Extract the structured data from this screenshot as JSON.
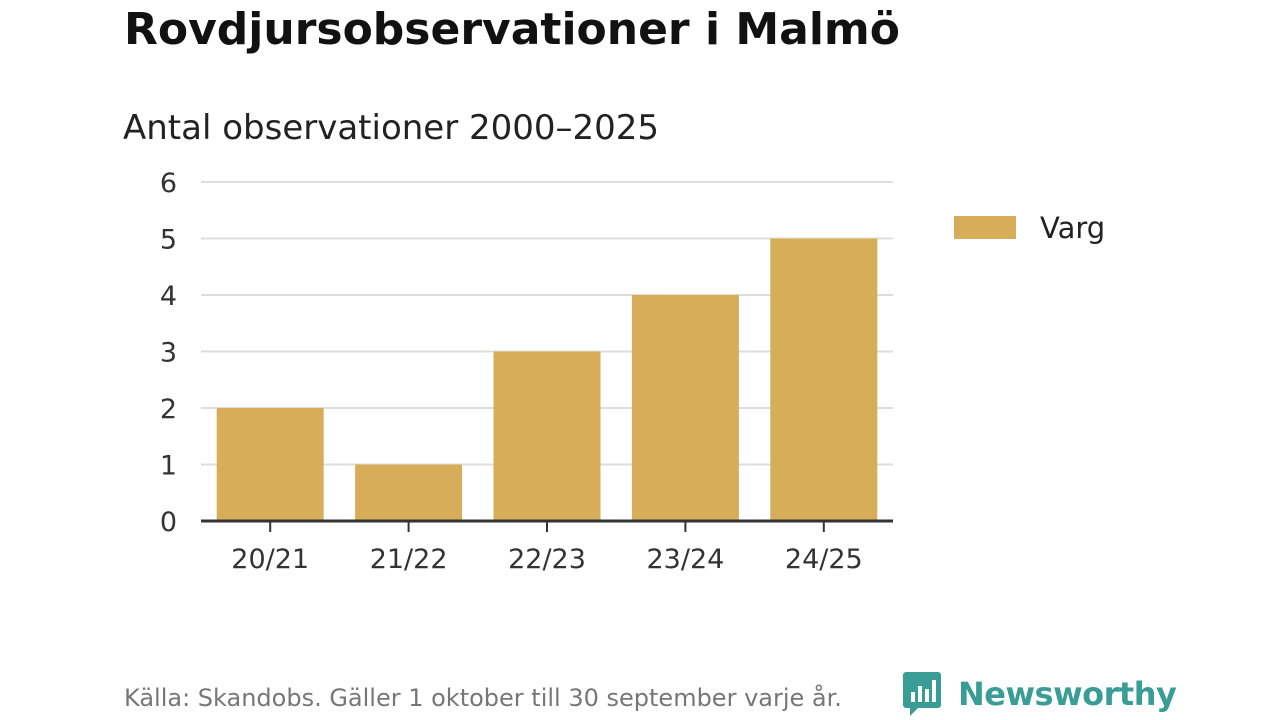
{
  "title": "Rovdjursobservationer i Malmö",
  "subtitle": "Antal observationer 2000–2025",
  "source": "Källa: Skandobs. Gäller 1 oktober till 30 september varje år.",
  "brand": {
    "name": "Newsworthy",
    "icon": "newsworthy-logo-icon",
    "color": "#3a9d95"
  },
  "chart_data": {
    "type": "bar",
    "title": "Antal observationer 2000–2025",
    "xlabel": "",
    "ylabel": "",
    "categories": [
      "20/21",
      "21/22",
      "22/23",
      "23/24",
      "24/25"
    ],
    "series": [
      {
        "name": "Varg",
        "values": [
          2,
          1,
          3,
          4,
          5
        ],
        "color": "#d8ad5a"
      }
    ],
    "ylim": [
      0,
      6
    ],
    "yticks": [
      0,
      1,
      2,
      3,
      4,
      5,
      6
    ],
    "grid": true,
    "legend_position": "right"
  }
}
